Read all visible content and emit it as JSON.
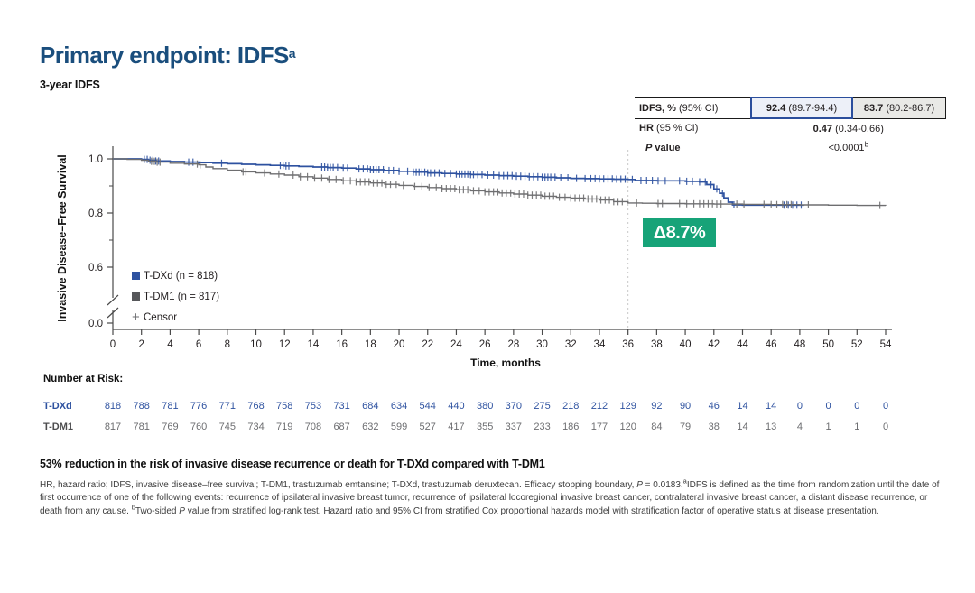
{
  "slide": {
    "title": "Primary endpoint: IDFS",
    "title_sup": "a",
    "subtitle": "3-year IDFS",
    "conclusion": "53% reduction in the risk of invasive disease recurrence or death for T-DXd compared with T-DM1",
    "footnote_segments": [
      {
        "t": "HR, hazard ratio; IDFS, invasive disease–free survival; T-DM1, trastuzumab emtansine; T-DXd, trastuzumab deruxtecan. Efficacy stopping boundary, "
      },
      {
        "t": "P",
        "i": true
      },
      {
        "t": " = 0.0183."
      },
      {
        "t": "a",
        "sup": true
      },
      {
        "t": "IDFS is defined as the time from randomization until the date of first occurrence of one of the following events: recurrence of ipsilateral invasive breast tumor, recurrence of ipsilateral locoregional invasive breast cancer, contralateral invasive breast cancer, a distant disease recurrence, or death from any cause. "
      },
      {
        "t": "b",
        "sup": true
      },
      {
        "t": "Two-sided "
      },
      {
        "t": "P",
        "i": true
      },
      {
        "t": " value from stratified log-rank test. Hazard ratio and 95% CI from stratified Cox proportional hazards model with stratification factor of operative status at disease presentation."
      }
    ]
  },
  "stats_table": {
    "row1": {
      "label_b": "IDFS, %",
      "label_r": " (95% CI)",
      "v1_b": "92.4",
      "v1_r": " (89.7-94.4)",
      "v2_b": "83.7",
      "v2_r": " (80.2-86.7)"
    },
    "row2": {
      "label_b": "HR",
      "label_r": " (95 % CI)",
      "v_b": "0.47",
      "v_r": " (0.34-0.66)"
    },
    "row3": {
      "label_b": "P",
      "label_r": " value",
      "v": "<0.0001",
      "v_sup": "b"
    }
  },
  "chart_data": {
    "type": "line",
    "subtype": "kaplan-meier-step",
    "title": "3-year IDFS",
    "xlabel": "Time, months",
    "ylabel": "Invasive Disease–Free Survival",
    "xlim": [
      0,
      54
    ],
    "x_ticks": [
      0,
      2,
      4,
      6,
      8,
      10,
      12,
      14,
      16,
      18,
      20,
      22,
      24,
      26,
      28,
      30,
      32,
      34,
      36,
      38,
      40,
      42,
      44,
      46,
      48,
      50,
      52,
      54
    ],
    "y_ticks": [
      {
        "label": "1.0",
        "s": 1.0
      },
      {
        "label": "0.8",
        "s": 0.8
      },
      {
        "label": "0.6",
        "s": 0.6
      },
      {
        "label": "0.0",
        "s": 0
      }
    ],
    "y_minor_ticks": [
      0.9,
      0.7
    ],
    "y_axis_break": true,
    "grid": false,
    "landmark_month": 36,
    "axis_color": "#4a4a4a",
    "landmark_color": "#c8c8c8",
    "legend_position": "inside-left",
    "legend": [
      {
        "label": "T-DXd (n = 818)",
        "color": "#2e52a0",
        "marker": "square"
      },
      {
        "label": "T-DM1 (n = 817)",
        "color": "#56575a",
        "marker": "square"
      },
      {
        "label": "Censor",
        "color": "#6d6e71",
        "marker": "plus"
      }
    ],
    "annotation": {
      "text": "Δ8.7%",
      "bg": "#17a378",
      "fg": "#ffffff"
    },
    "series": [
      {
        "name": "T-DXd",
        "color": "#2e52a0",
        "stroke_width": 1.7,
        "points": [
          [
            0,
            1.0
          ],
          [
            2,
            0.998
          ],
          [
            2.5,
            0.995
          ],
          [
            3,
            0.992
          ],
          [
            4,
            0.99
          ],
          [
            5,
            0.988
          ],
          [
            6,
            0.986
          ],
          [
            7,
            0.984
          ],
          [
            8,
            0.982
          ],
          [
            9,
            0.98
          ],
          [
            10,
            0.978
          ],
          [
            11,
            0.976
          ],
          [
            12,
            0.974
          ],
          [
            13,
            0.972
          ],
          [
            14,
            0.97
          ],
          [
            15,
            0.968
          ],
          [
            16,
            0.966
          ],
          [
            17,
            0.963
          ],
          [
            18,
            0.96
          ],
          [
            19,
            0.957
          ],
          [
            20,
            0.954
          ],
          [
            21,
            0.951
          ],
          [
            22,
            0.948
          ],
          [
            23,
            0.946
          ],
          [
            24,
            0.944
          ],
          [
            25,
            0.942
          ],
          [
            26,
            0.94
          ],
          [
            27,
            0.938
          ],
          [
            28,
            0.936
          ],
          [
            29,
            0.934
          ],
          [
            30,
            0.932
          ],
          [
            31,
            0.93
          ],
          [
            32,
            0.928
          ],
          [
            33,
            0.927
          ],
          [
            34,
            0.926
          ],
          [
            35,
            0.925
          ],
          [
            36,
            0.924
          ],
          [
            36.5,
            0.92
          ],
          [
            38,
            0.919
          ],
          [
            40,
            0.917
          ],
          [
            41,
            0.915
          ],
          [
            41.5,
            0.905
          ],
          [
            42,
            0.889
          ],
          [
            42.4,
            0.873
          ],
          [
            42.7,
            0.856
          ],
          [
            43,
            0.84
          ],
          [
            43.3,
            0.83
          ],
          [
            44,
            0.829
          ],
          [
            48.3,
            0.828
          ]
        ],
        "censors": [
          2.2,
          2.4,
          2.6,
          2.8,
          3.0,
          3.2,
          5.3,
          5.6,
          7.6,
          11.7,
          11.9,
          12.1,
          12.3,
          14.6,
          14.8,
          15.0,
          15.2,
          15.4,
          15.7,
          16.1,
          16.4,
          17.2,
          17.5,
          17.8,
          18.0,
          18.2,
          18.4,
          18.6,
          18.9,
          19.3,
          19.6,
          20.0,
          20.6,
          21.0,
          21.2,
          21.4,
          21.6,
          21.8,
          22.0,
          22.2,
          22.5,
          22.8,
          23.2,
          23.6,
          24.0,
          24.2,
          24.4,
          24.6,
          24.8,
          25.0,
          25.2,
          25.5,
          25.8,
          26.2,
          26.6,
          27.0,
          27.3,
          27.6,
          27.9,
          28.2,
          28.5,
          28.8,
          29.1,
          29.4,
          29.7,
          30.0,
          30.2,
          30.4,
          30.6,
          30.9,
          31.3,
          31.8,
          32.4,
          33.0,
          33.4,
          33.7,
          34.0,
          34.3,
          34.6,
          34.9,
          35.2,
          35.5,
          35.8,
          36.3,
          36.9,
          37.3,
          37.7,
          38.1,
          38.6,
          39.6,
          40.1,
          40.5,
          41.0,
          41.4,
          41.8,
          42.2,
          42.6,
          43.4,
          46.9,
          47.2,
          47.5,
          47.8,
          48.1
        ]
      },
      {
        "name": "T-DM1",
        "color": "#6e6e70",
        "stroke_width": 1.4,
        "points": [
          [
            0,
            1.0
          ],
          [
            1,
            0.998
          ],
          [
            2,
            0.995
          ],
          [
            2.5,
            0.991
          ],
          [
            3,
            0.988
          ],
          [
            4,
            0.984
          ],
          [
            5,
            0.981
          ],
          [
            6,
            0.978
          ],
          [
            6.5,
            0.97
          ],
          [
            7,
            0.964
          ],
          [
            8,
            0.958
          ],
          [
            9,
            0.952
          ],
          [
            10,
            0.948
          ],
          [
            11,
            0.944
          ],
          [
            12,
            0.94
          ],
          [
            13,
            0.934
          ],
          [
            14,
            0.929
          ],
          [
            15,
            0.924
          ],
          [
            16,
            0.919
          ],
          [
            17,
            0.915
          ],
          [
            18,
            0.911
          ],
          [
            19,
            0.906
          ],
          [
            20,
            0.902
          ],
          [
            21,
            0.898
          ],
          [
            22,
            0.894
          ],
          [
            23,
            0.89
          ],
          [
            24,
            0.886
          ],
          [
            25,
            0.882
          ],
          [
            26,
            0.878
          ],
          [
            27,
            0.874
          ],
          [
            28,
            0.87
          ],
          [
            29,
            0.866
          ],
          [
            30,
            0.862
          ],
          [
            31,
            0.858
          ],
          [
            32,
            0.855
          ],
          [
            33,
            0.852
          ],
          [
            34,
            0.848
          ],
          [
            35,
            0.842
          ],
          [
            36,
            0.837
          ],
          [
            37,
            0.836
          ],
          [
            38,
            0.835
          ],
          [
            40,
            0.834
          ],
          [
            42,
            0.833
          ],
          [
            44,
            0.832
          ],
          [
            46,
            0.831
          ],
          [
            48,
            0.83
          ],
          [
            50,
            0.829
          ],
          [
            52,
            0.828
          ],
          [
            54,
            0.827
          ]
        ],
        "censors": [
          2.7,
          2.9,
          3.1,
          3.3,
          5.9,
          6.1,
          9.1,
          9.3,
          10.6,
          11.6,
          12.6,
          13.1,
          13.6,
          14.1,
          14.6,
          15.1,
          15.6,
          16.1,
          16.6,
          17.0,
          17.3,
          17.6,
          17.9,
          18.2,
          18.5,
          18.8,
          19.1,
          19.4,
          19.8,
          20.3,
          21.1,
          21.6,
          22.1,
          22.6,
          23.0,
          23.3,
          23.6,
          23.9,
          24.2,
          24.5,
          24.8,
          25.2,
          25.6,
          26.0,
          26.3,
          26.6,
          26.9,
          27.2,
          27.5,
          27.8,
          28.1,
          28.4,
          28.7,
          29.0,
          29.3,
          29.6,
          29.9,
          30.2,
          30.5,
          30.8,
          31.2,
          31.6,
          32.0,
          32.3,
          32.6,
          32.9,
          33.2,
          33.5,
          33.8,
          34.1,
          34.4,
          34.7,
          35.0,
          35.3,
          35.6,
          36.6,
          38.1,
          38.4,
          39.6,
          40.1,
          40.6,
          41.0,
          41.3,
          41.6,
          41.9,
          42.2,
          42.5,
          43.6,
          44.1,
          45.5,
          46.0,
          46.4,
          46.8,
          47.1,
          47.4,
          48.6,
          53.6
        ]
      }
    ],
    "number_at_risk": {
      "heading": "Number at Risk:",
      "rows": [
        {
          "label": "T-DXd",
          "color": "#2e52a0",
          "values": [
            818,
            788,
            781,
            776,
            771,
            768,
            758,
            753,
            731,
            684,
            634,
            544,
            440,
            380,
            370,
            275,
            218,
            212,
            129,
            92,
            90,
            46,
            14,
            14,
            0,
            0,
            0,
            0
          ]
        },
        {
          "label": "T-DM1",
          "color": "#6d6e71",
          "label_color": "#4d4d4f",
          "values": [
            817,
            781,
            769,
            760,
            745,
            734,
            719,
            708,
            687,
            632,
            599,
            527,
            417,
            355,
            337,
            233,
            186,
            177,
            120,
            84,
            79,
            38,
            14,
            13,
            4,
            1,
            1,
            0
          ]
        }
      ]
    }
  }
}
